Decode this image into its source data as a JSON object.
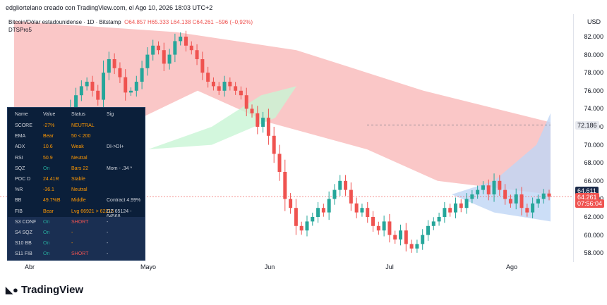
{
  "credit": "edgliortelano creado con TradingView.com, el Ago 10, 2026 18:03 UTC+2",
  "legend": {
    "symbol": "Bitcoin/Dólar estadounidense · 1D · Bitstamp",
    "ohlc": "O64.857 H65.333 L64.138 C64.261 −596 (−0,92%)",
    "indicator": "DTSPro5"
  },
  "colors": {
    "up": "#26a69a",
    "down": "#ef5350",
    "cloud_red": "#f8b4b4",
    "cloud_green": "#c8f5d4",
    "panel_bg": "#0b1f3a"
  },
  "chart_data": {
    "type": "candlestick",
    "currency": "USD",
    "y_ticks": [
      58000,
      60000,
      62000,
      64000,
      66000,
      68000,
      70000,
      72000,
      74000,
      76000,
      78000,
      80000,
      82000
    ],
    "x_ticks": [
      "Abr",
      "Mayo",
      "Jun",
      "Jul",
      "Ago"
    ],
    "last_price": "64.611",
    "close_price": "64.261",
    "countdown": "07:56:04",
    "level_label": "72.186",
    "ylim": [
      57000,
      84500
    ],
    "close_series": [
      73000,
      72000,
      71000,
      70000,
      69000,
      67500,
      66000,
      65500,
      68000,
      69500,
      72000,
      74000,
      75500,
      76500,
      77000,
      76000,
      75000,
      78000,
      79500,
      78500,
      77500,
      75800,
      76000,
      77000,
      78500,
      80000,
      81000,
      80500,
      79000,
      80000,
      81500,
      82000,
      81000,
      80500,
      79500,
      78000,
      77000,
      76500,
      76000,
      77000,
      76500,
      76000,
      75500,
      74000,
      73500,
      72000,
      73000,
      71000,
      69000,
      67000,
      64000,
      63000,
      61000,
      60500,
      61500,
      62000,
      63000,
      62500,
      64000,
      65000,
      66000,
      65000,
      63500,
      62500,
      63000,
      62000,
      61000,
      60500,
      61500,
      60000,
      59500,
      60500,
      59000,
      58500,
      59000,
      60000,
      61000,
      61500,
      62000,
      63000,
      62500,
      63500,
      63000,
      64000,
      64500,
      65000,
      65500,
      64500,
      66000,
      65000,
      64000,
      63500,
      64500,
      63000,
      62500,
      63500,
      64000,
      64600,
      64261
    ],
    "sentiment_table": [
      {
        "name": "SCORE",
        "value": "-27%",
        "status": "NEUTRAL",
        "sig": ""
      },
      {
        "name": "EMA",
        "value": "Bear",
        "status": "50 < 200",
        "sig": ""
      },
      {
        "name": "ADX",
        "value": "10.6",
        "status": "Weak",
        "sig": "DI->DI+"
      },
      {
        "name": "RSI",
        "value": "50.9",
        "status": "Neutral",
        "sig": ""
      },
      {
        "name": "SQZ",
        "value": "On",
        "status": "Bars 22",
        "sig": "Mom - .34 *"
      },
      {
        "name": "POC D",
        "value": "24.41R",
        "status": "Stable",
        "sig": ""
      },
      {
        "name": "%R",
        "value": "-36.1",
        "status": "Neutral",
        "sig": ""
      },
      {
        "name": "BB",
        "value": "49.7%B",
        "status": "Middle",
        "sig": "Contract 4.99%"
      },
      {
        "name": "FIB",
        "value": "Bear",
        "status": "Lvg 66921 > 62216",
        "sig": "GZ 65124 - 64568"
      },
      {
        "name": "S3 CONF",
        "value": "On",
        "status": "SHORT",
        "sig": "-"
      },
      {
        "name": "S4 SQZ",
        "value": "On",
        "status": "-",
        "sig": "-"
      },
      {
        "name": "S10 BB",
        "value": "On",
        "status": "-",
        "sig": "-"
      },
      {
        "name": "S11 FIB",
        "value": "On",
        "status": "SHORT",
        "sig": "-"
      }
    ],
    "table_headers": [
      "Name",
      "Value",
      "Status",
      "Sig"
    ]
  },
  "logo": "TradingView"
}
